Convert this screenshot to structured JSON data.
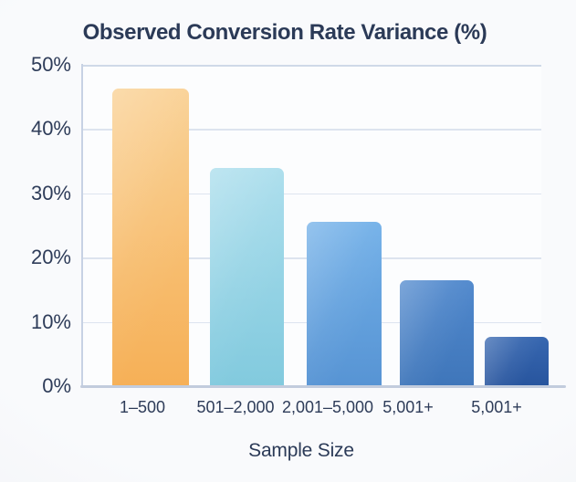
{
  "chart_data": {
    "type": "bar",
    "title": "Observed Conversion Rate Variance (%)",
    "xlabel": "Sample Size",
    "ylabel": "",
    "categories": [
      "1–500",
      "501–2,000",
      "2,001–5,000",
      "5,001+",
      "5,001+"
    ],
    "values": [
      46.3,
      34,
      25.6,
      16.5,
      7.7
    ],
    "ylim": [
      0,
      50
    ],
    "ytick_labels": [
      "50%",
      "40%",
      "30%",
      "20%",
      "10%",
      "0%"
    ],
    "grid": true,
    "legend": null,
    "bar_colors": [
      {
        "top": "#f9cf90",
        "bottom": "#f6b057"
      },
      {
        "top": "#a9ddec",
        "bottom": "#82cade"
      },
      {
        "top": "#72b0e8",
        "bottom": "#5794d4"
      },
      {
        "top": "#5189cd",
        "bottom": "#3f76ba"
      },
      {
        "top": "#3767b0",
        "bottom": "#28559e"
      }
    ]
  }
}
